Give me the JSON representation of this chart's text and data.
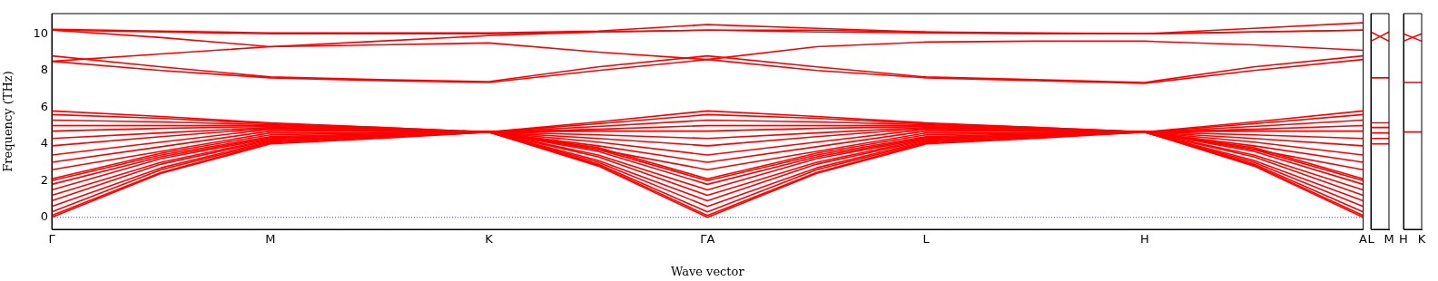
{
  "chart_data": [
    {
      "type": "line",
      "xlabel": "Wave vector",
      "ylabel": "Frequency (THz)",
      "marker": "none",
      "categories": [
        "Γ",
        null,
        "M",
        null,
        "K",
        null,
        "ΓA",
        null,
        "L",
        null,
        "H",
        null,
        "A"
      ],
      "ylim": [
        -0.65,
        11.1
      ],
      "yticks": [
        0,
        2,
        4,
        6,
        8,
        10
      ],
      "ref_lines": [
        {
          "axis": "y",
          "value": 0,
          "color": "#0000ff",
          "line_style": "dotted"
        }
      ],
      "series": [
        {
          "color": "#ff0000",
          "values": [
            0,
            2.4,
            4.0,
            4.3,
            4.65,
            2.8,
            0,
            2.4,
            4.0,
            4.3,
            4.65,
            2.8,
            0
          ]
        },
        {
          "color": "#ff0000",
          "values": [
            0.1,
            2.45,
            4.05,
            4.35,
            4.65,
            2.85,
            0.1,
            2.45,
            4.05,
            4.35,
            4.65,
            2.85,
            0.1
          ]
        },
        {
          "color": "#ff0000",
          "values": [
            0.3,
            2.6,
            4.1,
            4.4,
            4.65,
            2.9,
            0.3,
            2.6,
            4.1,
            4.4,
            4.65,
            2.9,
            0.3
          ]
        },
        {
          "color": "#ff0000",
          "values": [
            0.6,
            2.7,
            4.15,
            4.4,
            4.65,
            3.0,
            0.6,
            2.7,
            4.15,
            4.4,
            4.65,
            3.0,
            0.6
          ]
        },
        {
          "color": "#ff0000",
          "values": [
            0.9,
            2.9,
            4.2,
            4.45,
            4.65,
            3.1,
            0.9,
            2.9,
            4.2,
            4.45,
            4.65,
            3.1,
            0.9
          ]
        },
        {
          "color": "#ff0000",
          "values": [
            1.2,
            3.0,
            4.25,
            4.45,
            4.65,
            3.3,
            1.2,
            3.0,
            4.25,
            4.45,
            4.65,
            3.3,
            1.2
          ]
        },
        {
          "color": "#ff0000",
          "values": [
            1.5,
            3.2,
            4.3,
            4.5,
            4.65,
            3.4,
            1.5,
            3.2,
            4.3,
            4.5,
            4.65,
            3.4,
            1.5
          ]
        },
        {
          "color": "#ff0000",
          "values": [
            1.8,
            3.3,
            4.35,
            4.5,
            4.65,
            3.6,
            1.8,
            3.3,
            4.35,
            4.5,
            4.65,
            3.6,
            1.8
          ]
        },
        {
          "color": "#ff0000",
          "values": [
            2.0,
            3.4,
            4.4,
            4.55,
            4.65,
            3.7,
            2.0,
            3.4,
            4.4,
            4.55,
            4.65,
            3.7,
            2.0
          ]
        },
        {
          "color": "#ff0000",
          "values": [
            2.1,
            3.5,
            4.5,
            4.6,
            4.65,
            3.8,
            2.1,
            3.5,
            4.5,
            4.6,
            4.65,
            3.8,
            2.1
          ]
        },
        {
          "color": "#ff0000",
          "values": [
            2.6,
            3.6,
            4.6,
            4.6,
            4.65,
            3.7,
            2.6,
            3.6,
            4.6,
            4.6,
            4.65,
            3.7,
            2.6
          ]
        },
        {
          "color": "#ff0000",
          "values": [
            3.0,
            3.85,
            4.7,
            4.7,
            4.65,
            3.9,
            3.0,
            3.85,
            4.7,
            4.7,
            4.65,
            3.9,
            3.0
          ]
        },
        {
          "color": "#ff0000",
          "values": [
            3.4,
            4.1,
            4.8,
            4.7,
            4.65,
            4.1,
            3.4,
            4.1,
            4.8,
            4.7,
            4.65,
            4.1,
            3.4
          ]
        },
        {
          "color": "#ff0000",
          "values": [
            3.9,
            4.4,
            4.85,
            4.75,
            4.65,
            4.3,
            3.9,
            4.4,
            4.85,
            4.75,
            4.65,
            4.3,
            3.9
          ]
        },
        {
          "color": "#ff0000",
          "values": [
            4.3,
            4.6,
            4.9,
            4.8,
            4.65,
            4.5,
            4.3,
            4.6,
            4.9,
            4.8,
            4.65,
            4.5,
            4.3
          ]
        },
        {
          "color": "#ff0000",
          "values": [
            4.7,
            4.85,
            4.95,
            4.8,
            4.65,
            4.7,
            4.7,
            4.85,
            4.95,
            4.8,
            4.65,
            4.7,
            4.7
          ]
        },
        {
          "color": "#ff0000",
          "values": [
            5.0,
            5.0,
            5.0,
            4.85,
            4.65,
            4.8,
            5.0,
            5.0,
            5.0,
            4.85,
            4.65,
            4.8,
            5.0
          ]
        },
        {
          "color": "#ff0000",
          "values": [
            5.3,
            5.2,
            5.05,
            4.85,
            4.65,
            4.95,
            5.3,
            5.2,
            5.05,
            4.85,
            4.65,
            4.95,
            5.3
          ]
        },
        {
          "color": "#ff0000",
          "values": [
            5.6,
            5.4,
            5.1,
            4.9,
            4.65,
            5.1,
            5.6,
            5.4,
            5.1,
            4.9,
            4.65,
            5.1,
            5.6
          ]
        },
        {
          "color": "#ff0000",
          "values": [
            5.8,
            5.5,
            5.15,
            4.9,
            4.65,
            5.2,
            5.8,
            5.5,
            5.15,
            4.9,
            4.65,
            5.2,
            5.8
          ]
        },
        {
          "color": "#ff0000",
          "values": [
            8.8,
            8.2,
            7.65,
            7.5,
            7.4,
            8.2,
            8.8,
            8.2,
            7.65,
            7.5,
            7.35,
            8.2,
            8.8
          ]
        },
        {
          "color": "#ff0000",
          "values": [
            8.5,
            8.0,
            7.6,
            7.45,
            7.35,
            8.0,
            8.6,
            8.0,
            7.6,
            7.45,
            7.3,
            8.0,
            8.6
          ]
        },
        {
          "color": "#ff0000",
          "values": [
            10.2,
            10.1,
            10.0,
            10.0,
            10.0,
            10.1,
            10.2,
            10.1,
            10.05,
            10.0,
            10.0,
            10.1,
            10.2
          ]
        },
        {
          "color": "#ff0000",
          "values": [
            10.25,
            10.15,
            10.05,
            10.05,
            10.05,
            10.15,
            10.5,
            10.3,
            10.1,
            10.05,
            10.0,
            10.3,
            10.6
          ]
        },
        {
          "color": "#ff0000",
          "values": [
            10.2,
            9.8,
            9.3,
            9.4,
            9.5,
            9.0,
            8.6,
            9.3,
            9.55,
            9.6,
            9.6,
            9.4,
            9.1
          ]
        },
        {
          "color": "#ff0000",
          "values": [
            8.5,
            8.9,
            9.3,
            9.6,
            9.9,
            10.1,
            10.2,
            10.2,
            10.1,
            10.0,
            10.0,
            10.1,
            10.2
          ]
        }
      ]
    },
    {
      "type": "line",
      "marker": "none",
      "tick_labels": "x",
      "categories": [
        "L",
        "M"
      ],
      "ylim": [
        -0.65,
        11.1
      ],
      "series": [
        {
          "color": "#ff0000",
          "values": [
            4.0,
            4.0
          ]
        },
        {
          "color": "#ff0000",
          "values": [
            4.3,
            4.3
          ]
        },
        {
          "color": "#ff0000",
          "values": [
            4.6,
            4.6
          ]
        },
        {
          "color": "#ff0000",
          "values": [
            4.9,
            4.9
          ]
        },
        {
          "color": "#ff0000",
          "values": [
            5.15,
            5.15
          ]
        },
        {
          "color": "#ff0000",
          "values": [
            7.6,
            7.6
          ]
        },
        {
          "color": "#ff0000",
          "values": [
            9.6,
            10.1
          ]
        },
        {
          "color": "#ff0000",
          "values": [
            10.1,
            9.6
          ]
        }
      ]
    },
    {
      "type": "line",
      "marker": "none",
      "tick_labels": "x",
      "categories": [
        "H",
        "K"
      ],
      "ylim": [
        -0.65,
        11.1
      ],
      "series": [
        {
          "color": "#ff0000",
          "values": [
            4.65,
            4.65
          ]
        },
        {
          "color": "#ff0000",
          "values": [
            7.35,
            7.35
          ]
        },
        {
          "color": "#ff0000",
          "values": [
            9.6,
            10.0
          ]
        },
        {
          "color": "#ff0000",
          "values": [
            10.0,
            9.6
          ]
        }
      ]
    }
  ]
}
